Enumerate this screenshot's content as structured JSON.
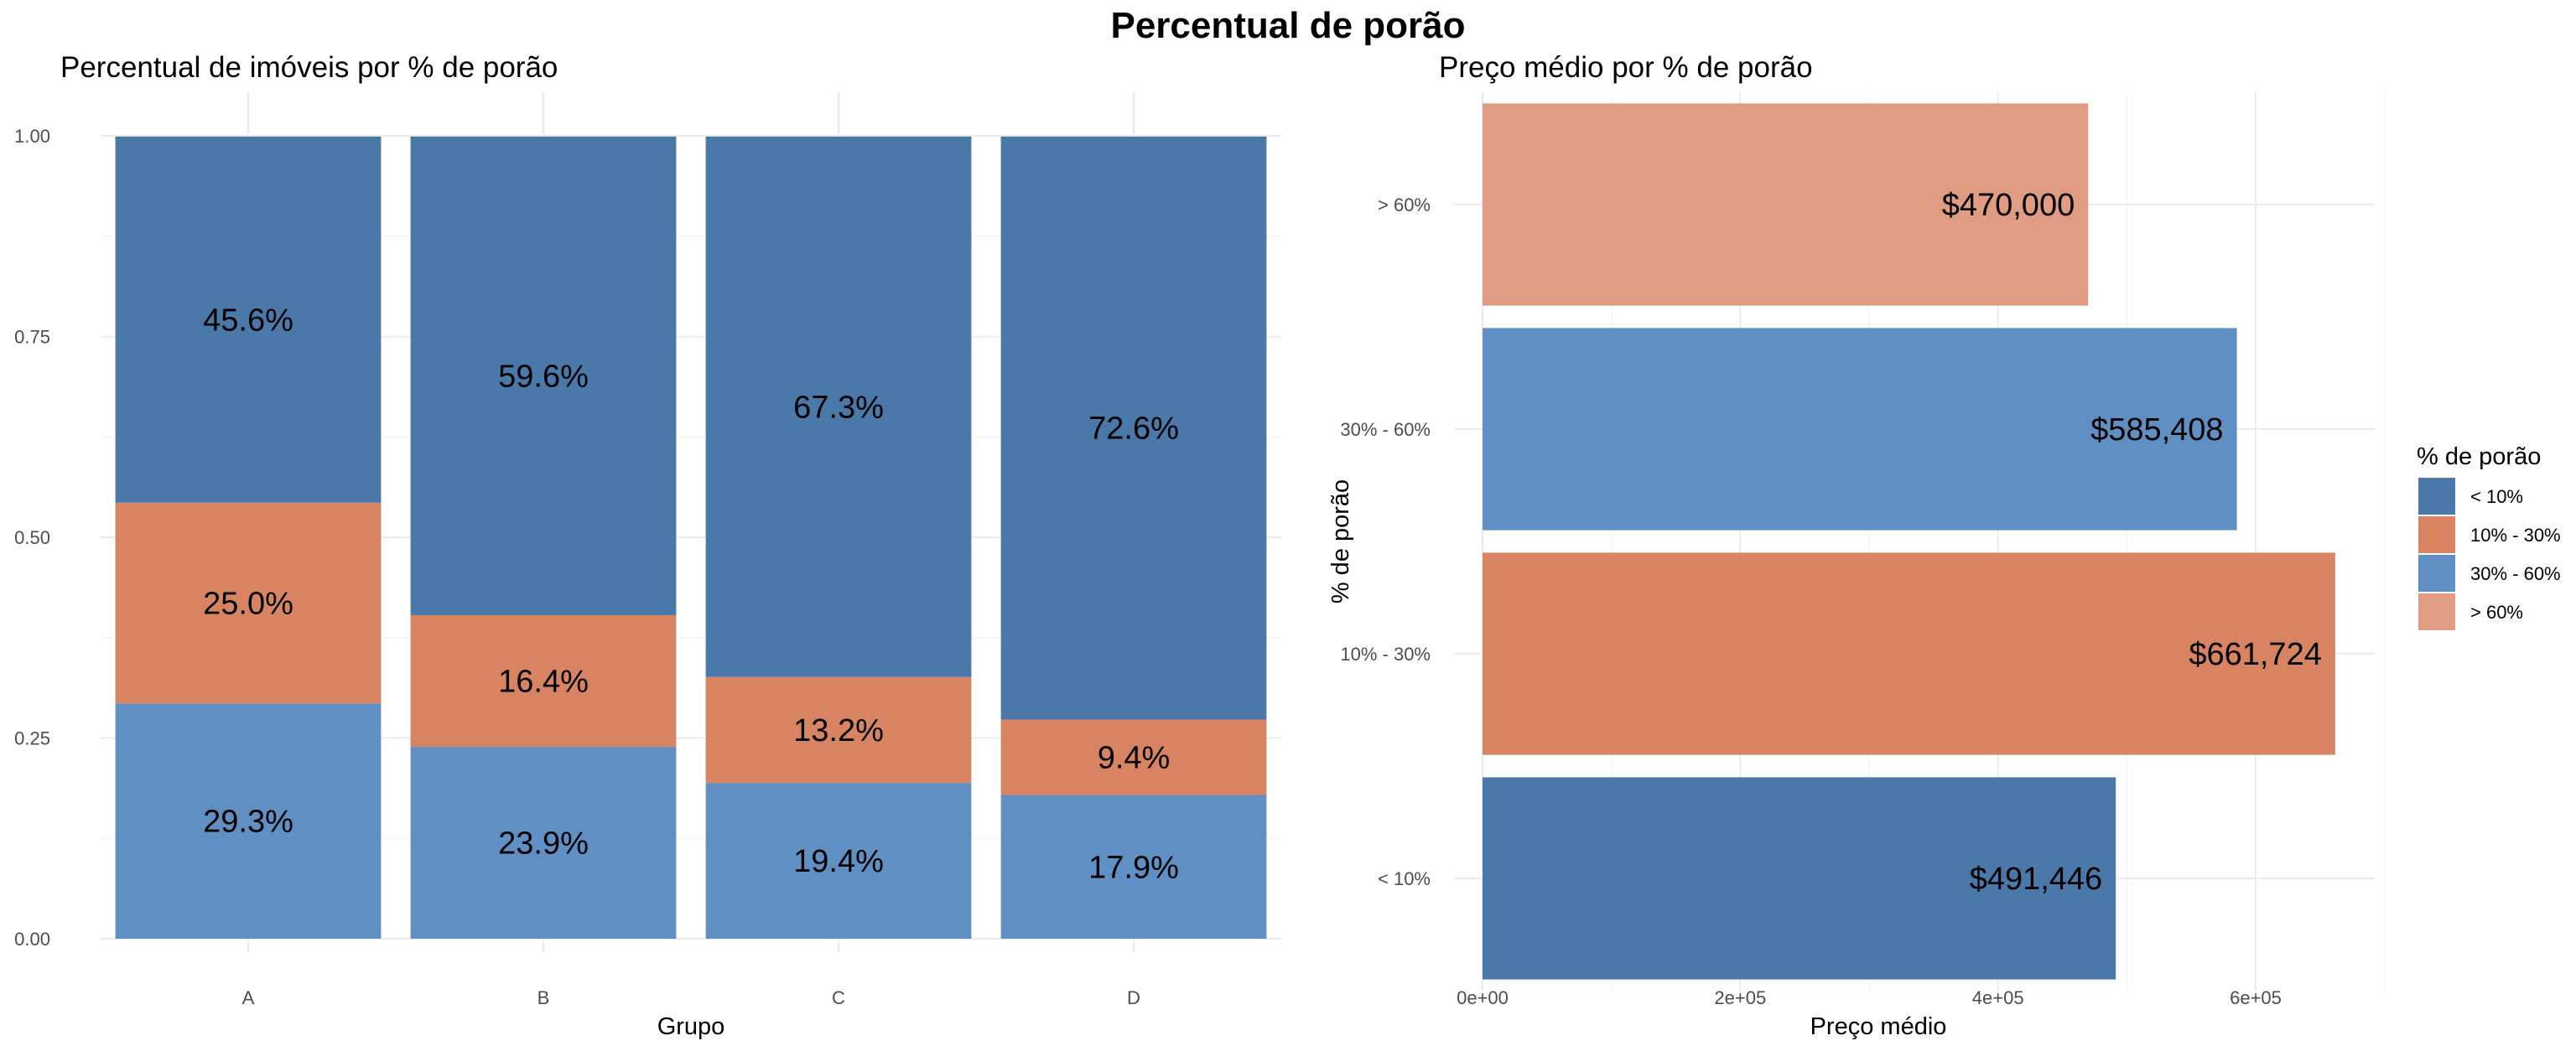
{
  "title": "Percentual de porão",
  "colors": {
    "lt10": "#4a78a8",
    "p10_30": "#d88462",
    "p30_60": "#6090c3",
    "gt60": "#e09c82"
  },
  "chart_data": [
    {
      "type": "bar",
      "orientation": "vertical",
      "stacked": true,
      "title": "Percentual de imóveis por % de porão",
      "xlabel": "Grupo",
      "ylabel": "",
      "categories": [
        "A",
        "B",
        "C",
        "D"
      ],
      "ylim": [
        0,
        1
      ],
      "yticks": [
        "0.00",
        "0.25",
        "0.50",
        "0.75",
        "1.00"
      ],
      "series": [
        {
          "key": "p30_60",
          "values": [
            0.293,
            0.239,
            0.194,
            0.179
          ],
          "labels": [
            "29.3%",
            "23.9%",
            "19.4%",
            "17.9%"
          ]
        },
        {
          "key": "p10_30",
          "values": [
            0.25,
            0.164,
            0.132,
            0.094
          ],
          "labels": [
            "25.0%",
            "16.4%",
            "13.2%",
            "9.4%"
          ]
        },
        {
          "key": "lt10",
          "values": [
            0.456,
            0.596,
            0.673,
            0.726
          ],
          "labels": [
            "45.6%",
            "59.6%",
            "67.3%",
            "72.6%"
          ]
        }
      ],
      "grid": true
    },
    {
      "type": "bar",
      "orientation": "horizontal",
      "title": "Preço médio por % de porão",
      "xlabel": "Preço médio",
      "ylabel": "% de porão",
      "categories": [
        "< 10%",
        "10% - 30%",
        "30% - 60%",
        "> 60%"
      ],
      "category_keys": [
        "lt10",
        "p10_30",
        "p30_60",
        "gt60"
      ],
      "values": [
        491446,
        661724,
        585408,
        470000
      ],
      "labels": [
        "$491,446",
        "$661,724",
        "$585,408",
        "$470,000"
      ],
      "xlim": [
        0,
        700000
      ],
      "xticks": [
        0,
        200000,
        400000,
        600000
      ],
      "xtick_labels": [
        "0e+00",
        "2e+05",
        "4e+05",
        "6e+05"
      ],
      "grid": true
    }
  ],
  "legend": {
    "title": "% de porão",
    "placement": "right",
    "items": [
      {
        "label": "< 10%",
        "key": "lt10"
      },
      {
        "label": "10% - 30%",
        "key": "p10_30"
      },
      {
        "label": "30% - 60%",
        "key": "p30_60"
      },
      {
        "label": "> 60%",
        "key": "gt60"
      }
    ]
  }
}
